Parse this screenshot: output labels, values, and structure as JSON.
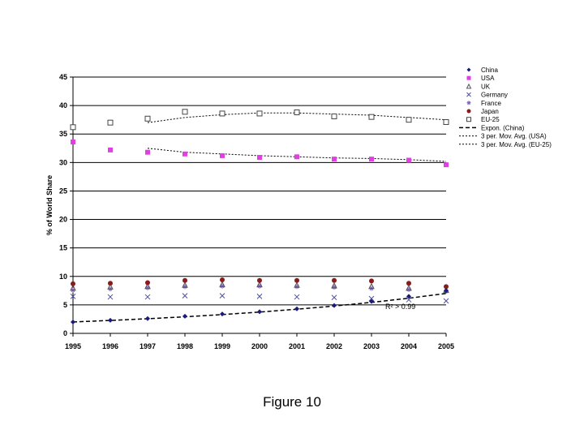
{
  "caption": "Figure 10",
  "chart_data": {
    "type": "scatter",
    "title": "",
    "xlabel": "",
    "ylabel": "% of World Share",
    "x": [
      "1995",
      "1996",
      "1997",
      "1998",
      "1999",
      "2000",
      "2001",
      "2002",
      "2003",
      "2004",
      "2005"
    ],
    "ylim": [
      0,
      45
    ],
    "yticks": [
      0,
      5,
      10,
      15,
      20,
      25,
      30,
      35,
      40,
      45
    ],
    "grid": "horizontal",
    "legend_position": "right",
    "series": [
      {
        "name": "China",
        "marker": "diamond-filled",
        "color": "#1a1a7a",
        "values": [
          2.0,
          2.3,
          2.6,
          3.0,
          3.4,
          3.8,
          4.3,
          4.9,
          5.6,
          6.5,
          7.5
        ]
      },
      {
        "name": "USA",
        "marker": "square-filled",
        "color": "#e040e0",
        "values": [
          33.6,
          32.2,
          31.8,
          31.5,
          31.2,
          30.9,
          31.0,
          30.6,
          30.6,
          30.4,
          29.6
        ]
      },
      {
        "name": "UK",
        "marker": "triangle-open",
        "color": "#555555",
        "values": [
          8.0,
          8.2,
          8.3,
          8.5,
          8.6,
          8.6,
          8.5,
          8.4,
          8.3,
          8.0,
          7.6
        ]
      },
      {
        "name": "Germany",
        "marker": "x",
        "color": "#5050a0",
        "values": [
          6.5,
          6.4,
          6.4,
          6.6,
          6.6,
          6.5,
          6.4,
          6.3,
          6.1,
          5.9,
          5.7
        ]
      },
      {
        "name": "France",
        "marker": "star",
        "color": "#8060c0",
        "values": [
          7.6,
          7.8,
          8.0,
          8.2,
          8.3,
          8.3,
          8.2,
          8.1,
          7.9,
          7.7,
          7.4
        ]
      },
      {
        "name": "Japan",
        "marker": "circle-filled",
        "color": "#8b1a1a",
        "values": [
          8.7,
          8.8,
          8.9,
          9.3,
          9.4,
          9.3,
          9.3,
          9.3,
          9.2,
          8.8,
          8.2
        ]
      },
      {
        "name": "EU-25",
        "marker": "square-open",
        "color": "#444444",
        "values": [
          36.2,
          37.0,
          37.7,
          38.9,
          38.6,
          38.6,
          38.8,
          38.1,
          38.0,
          37.5,
          37.1
        ]
      }
    ],
    "trendlines": [
      {
        "name": "Expon. (China)",
        "style": "dashed",
        "values": [
          2.0,
          2.27,
          2.57,
          2.91,
          3.3,
          3.74,
          4.24,
          4.8,
          5.44,
          6.17,
          7.0
        ]
      },
      {
        "name": "3 per. Mov. Avg. (USA)",
        "style": "dotted",
        "values": [
          null,
          null,
          32.5,
          31.8,
          31.5,
          31.2,
          31.0,
          30.8,
          30.7,
          30.5,
          30.2
        ]
      },
      {
        "name": "3 per. Mov. Avg. (EU-25)",
        "style": "dotted",
        "values": [
          null,
          null,
          37.0,
          37.9,
          38.4,
          38.7,
          38.7,
          38.5,
          38.3,
          37.9,
          37.5
        ]
      }
    ],
    "annotation": "R² > 0.99"
  }
}
